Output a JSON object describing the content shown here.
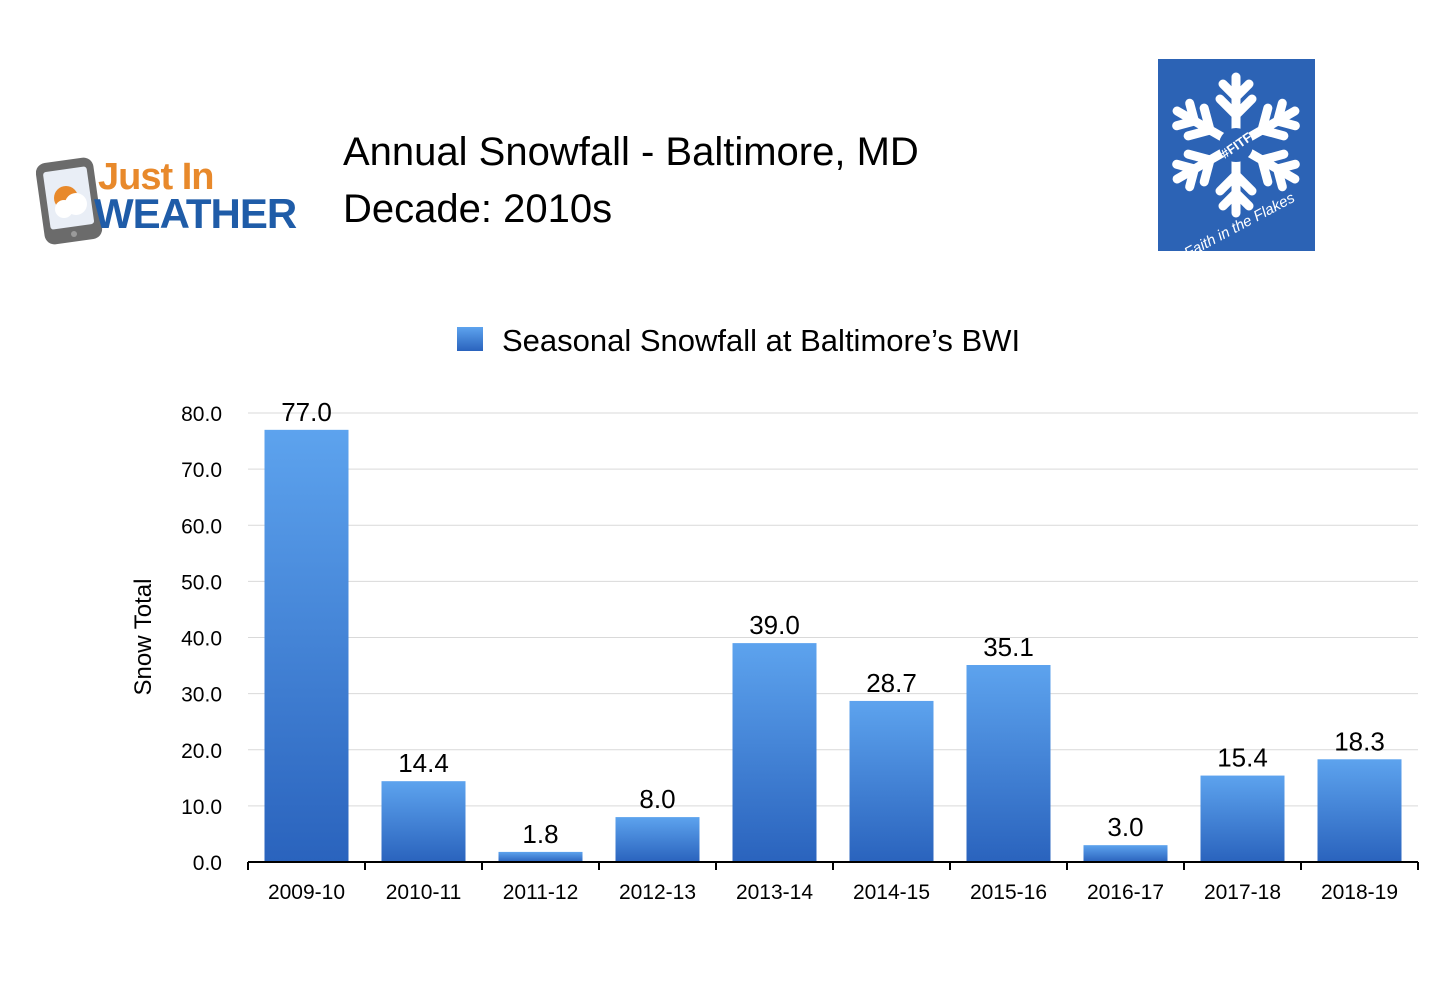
{
  "header": {
    "title_line1": "Annual Snowfall - Baltimore, MD",
    "title_line2": "Decade: 2010s"
  },
  "left_logo": {
    "text_top": "Just In",
    "text_bottom": "WEATHER",
    "colors": {
      "orange": "#e8892b",
      "blue": "#1f5ca8",
      "phone": "#6b6b6b"
    }
  },
  "right_logo": {
    "tag": "#FITF",
    "caption": "Faith in the Flakes",
    "bg_color": "#2c63b5",
    "icon": "snowflake-icon"
  },
  "chart_data": {
    "type": "bar",
    "categories": [
      "2009-10",
      "2010-11",
      "2011-12",
      "2012-13",
      "2013-14",
      "2014-15",
      "2015-16",
      "2016-17",
      "2017-18",
      "2018-19"
    ],
    "series": [
      {
        "name": "Seasonal Snowfall at Baltimore’s BWI",
        "values": [
          77.0,
          14.4,
          1.8,
          8.0,
          39.0,
          28.7,
          35.1,
          3.0,
          15.4,
          18.3
        ],
        "color": "#3f83da"
      }
    ],
    "data_labels": [
      "77.0",
      "14.4",
      "1.8",
      "8.0",
      "39.0",
      "28.7",
      "35.1",
      "3.0",
      "15.4",
      "18.3"
    ],
    "y_ticks": [
      "0.0",
      "10.0",
      "20.0",
      "30.0",
      "40.0",
      "50.0",
      "60.0",
      "70.0",
      "80.0"
    ],
    "xlabel": "",
    "ylabel": "Snow Total",
    "ylim": [
      0,
      80
    ],
    "grid": true,
    "legend_position": "top-center"
  }
}
